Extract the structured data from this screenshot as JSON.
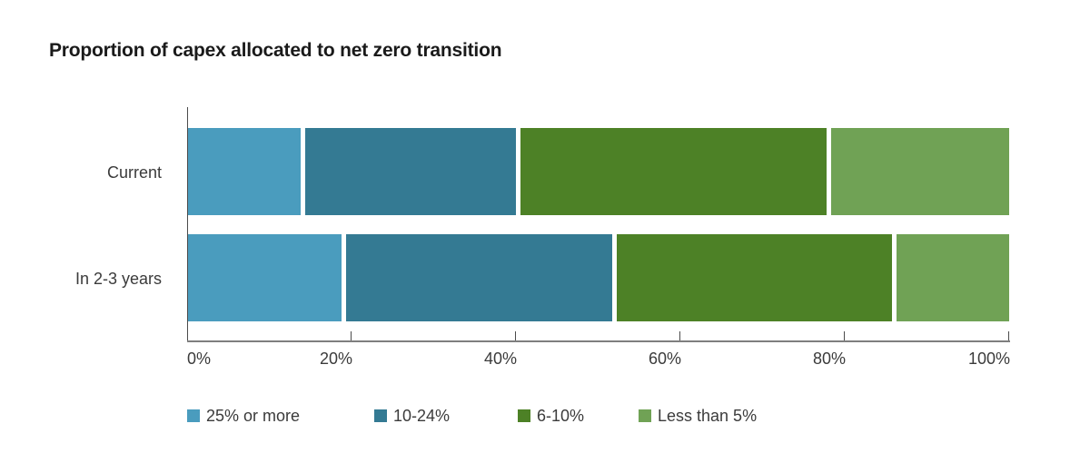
{
  "title": "Proportion of capex allocated to net zero transition",
  "chart_data": {
    "type": "bar",
    "stacked": true,
    "orientation": "horizontal",
    "title": "Proportion of capex allocated to net zero transition",
    "categories": [
      "Current",
      "In 2-3 years"
    ],
    "series": [
      {
        "name": "25% or more",
        "color": "#4a9cbe",
        "values": [
          14,
          19
        ]
      },
      {
        "name": "10-24%",
        "color": "#347a93",
        "values": [
          26,
          33
        ]
      },
      {
        "name": "6-10%",
        "color": "#4d8126",
        "values": [
          38,
          34
        ]
      },
      {
        "name": "Less than 5%",
        "color": "#70a255",
        "values": [
          22,
          14
        ]
      }
    ],
    "xlim": [
      0,
      100
    ],
    "x_tick_labels": [
      "0%",
      "20%",
      "40%",
      "60%",
      "80%",
      "100%"
    ],
    "grid": false,
    "legend_position": "bottom",
    "axis_color": "#4b4b4b",
    "baseline_color": "#7f7f7f",
    "text_color": "#3b3b3b"
  }
}
